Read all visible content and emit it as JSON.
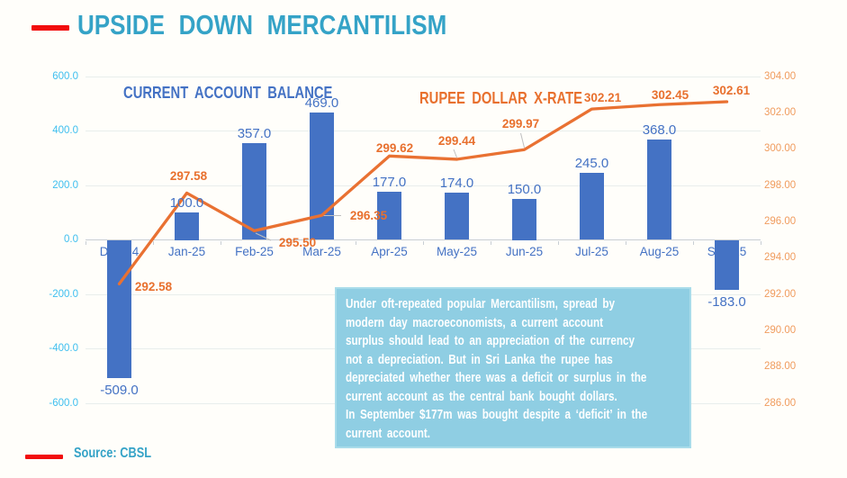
{
  "slide": {
    "title": "UPSIDE DOWN MERCANTILISM",
    "source_label": "Source: CBSL",
    "accent_red": "#F20D0D",
    "title_color": "#35A3C7",
    "background": "#FFFEFA"
  },
  "chart_data": {
    "type": "combo",
    "categories": [
      "Dec-24",
      "Jan-25",
      "Feb-25",
      "Mar-25",
      "Apr-25",
      "May-25",
      "Jun-25",
      "Jul-25",
      "Aug-25",
      "Sep-25"
    ],
    "series": [
      {
        "name": "CURRENT ACCOUNT BALANCE",
        "type": "bar",
        "axis": "left",
        "color": "#4472C4",
        "values": [
          -509,
          100,
          357,
          469,
          177,
          174,
          150,
          245,
          368,
          -183
        ],
        "labels": [
          "-509.0",
          "100.0",
          "357.0",
          "469.0",
          "177.0",
          "174.0",
          "150.0",
          "245.0",
          "368.0",
          "-183.0"
        ]
      },
      {
        "name": "RUPEE DOLLAR X-RATE",
        "type": "line",
        "axis": "right",
        "color": "#E97132",
        "values": [
          292.58,
          297.58,
          295.5,
          296.35,
          299.62,
          299.44,
          299.97,
          302.21,
          302.45,
          302.61
        ],
        "labels": [
          "292.58",
          "297.58",
          "295.50",
          "296.35",
          "299.62",
          "299.44",
          "299.97",
          "302.21",
          "302.45",
          "302.61"
        ]
      }
    ],
    "left_axis": {
      "min": -600,
      "max": 600,
      "step": 200,
      "color": "#3FBFEF",
      "ticks": [
        "600.0",
        "400.0",
        "200.0",
        "0.0",
        "-200.0",
        "-400.0",
        "-600.0"
      ]
    },
    "right_axis": {
      "min": 286,
      "max": 304,
      "step": 2,
      "color": "#F09C5E",
      "ticks": [
        "304.00",
        "302.00",
        "300.00",
        "298.00",
        "296.00",
        "294.00",
        "292.00",
        "290.00",
        "288.00",
        "286.00"
      ]
    },
    "grid": true,
    "legend_position": "inline-series-titles"
  },
  "annotation_box": {
    "bg_color": "#8FCEE3",
    "text_color": "#FFFFFF",
    "lines": [
      "Under oft-repeated popular Mercantilism, spread by",
      "modern day macroeconomists, a current account",
      "surplus should lead to an appreciation of the currency",
      "not a depreciation. But in Sri Lanka the rupee has",
      "depreciated whether there was a deficit or surplus in the",
      "current account as the central bank bought dollars.",
      "In September $177m was bought despite a ‘deficit’ in the",
      "current account."
    ]
  }
}
